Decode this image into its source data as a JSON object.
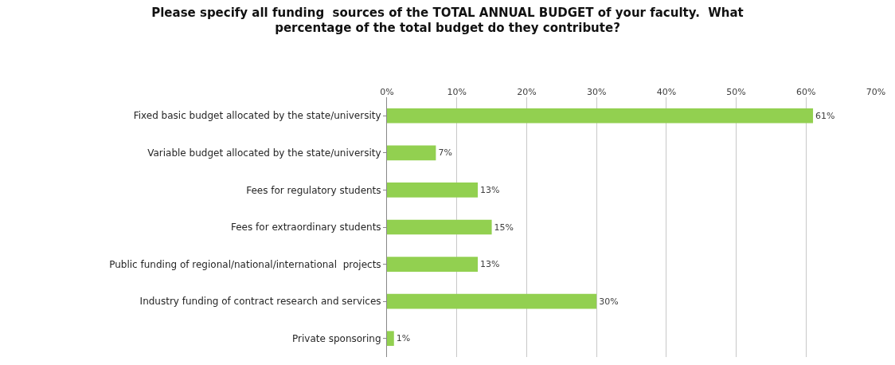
{
  "chart_data": {
    "type": "bar",
    "orientation": "horizontal",
    "title": "Please specify all funding  sources of the TOTAL ANNUAL BUDGET of your faculty.  What percentage of the total budget do they contribute?",
    "categories": [
      "Fixed basic budget allocated by the state/university",
      "Variable budget allocated by the state/university",
      "Fees for regulatory students",
      "Fees for extraordinary students",
      "Public funding of regional/national/international  projects",
      "Industry funding of contract research and services",
      "Private sponsoring"
    ],
    "values": [
      61,
      7,
      13,
      15,
      13,
      30,
      1
    ],
    "value_labels": [
      "61%",
      "7%",
      "13%",
      "15%",
      "13%",
      "30%",
      "1%"
    ],
    "color": "#92d050",
    "xlim": [
      0,
      70
    ],
    "xticks": [
      {
        "value": 0,
        "label": "0%"
      },
      {
        "value": 10,
        "label": "10%"
      },
      {
        "value": 20,
        "label": "20%"
      },
      {
        "value": 30,
        "label": "30%"
      },
      {
        "value": 40,
        "label": "40%"
      },
      {
        "value": 50,
        "label": "50%"
      },
      {
        "value": 60,
        "label": "60%"
      },
      {
        "value": 70,
        "label": "70%"
      }
    ],
    "grid": "x",
    "legend": false
  }
}
